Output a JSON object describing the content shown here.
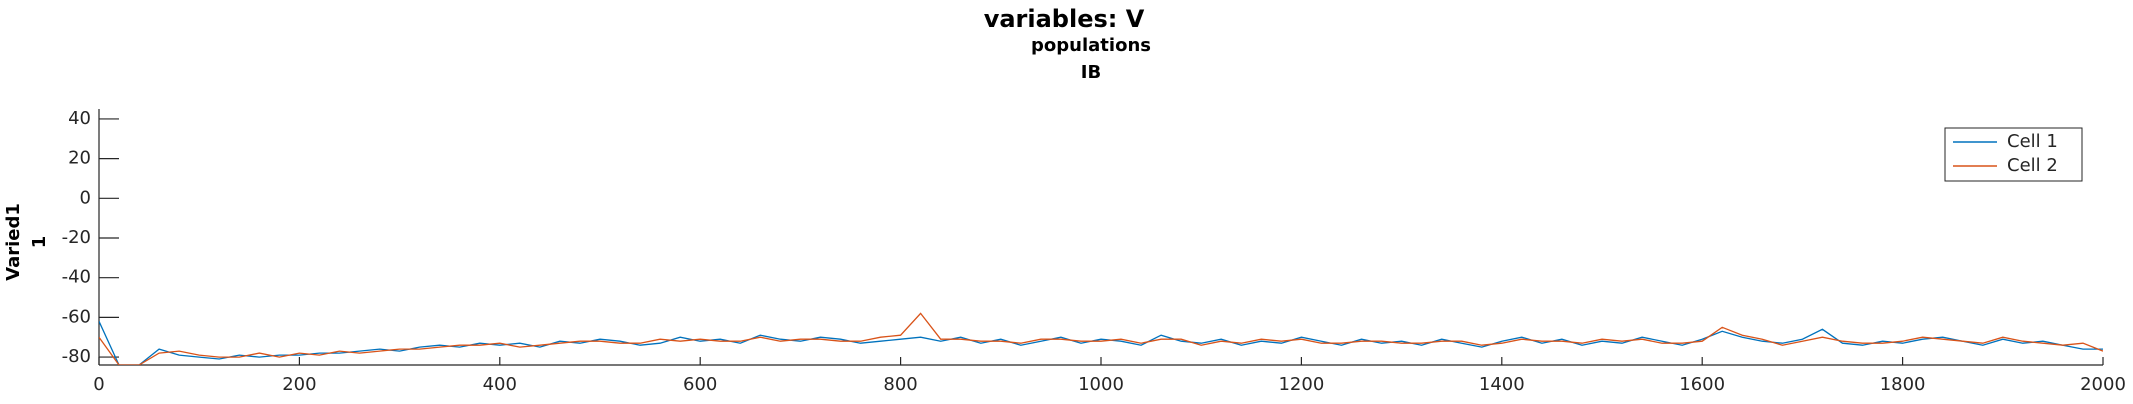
{
  "chart_data": {
    "type": "line",
    "title": "variables: V",
    "subtitles": [
      "populations",
      "IB"
    ],
    "ylabel": [
      "Varied1",
      "1"
    ],
    "x": [
      0,
      20,
      40,
      60,
      80,
      100,
      120,
      140,
      160,
      180,
      200,
      220,
      240,
      260,
      280,
      300,
      320,
      340,
      360,
      380,
      400,
      420,
      440,
      460,
      480,
      500,
      520,
      540,
      560,
      580,
      600,
      620,
      640,
      660,
      680,
      700,
      720,
      740,
      760,
      780,
      800,
      820,
      840,
      860,
      880,
      900,
      920,
      940,
      960,
      980,
      1000,
      1020,
      1040,
      1060,
      1080,
      1100,
      1120,
      1140,
      1160,
      1180,
      1200,
      1220,
      1240,
      1260,
      1280,
      1300,
      1320,
      1340,
      1360,
      1380,
      1400,
      1420,
      1440,
      1460,
      1480,
      1500,
      1520,
      1540,
      1560,
      1580,
      1600,
      1620,
      1640,
      1660,
      1680,
      1700,
      1720,
      1740,
      1760,
      1780,
      1800,
      1820,
      1840,
      1860,
      1880,
      1900,
      1920,
      1940,
      1960,
      1980,
      2000
    ],
    "series": [
      {
        "name": "Cell 1",
        "color": "#0072bd",
        "values": [
          -62,
          -84,
          -84,
          -76,
          -79,
          -80,
          -81,
          -79,
          -80,
          -79,
          -79,
          -78,
          -78,
          -77,
          -76,
          -77,
          -75,
          -74,
          -75,
          -73,
          -74,
          -73,
          -75,
          -72,
          -73,
          -71,
          -72,
          -74,
          -73,
          -70,
          -72,
          -71,
          -73,
          -69,
          -71,
          -72,
          -70,
          -71,
          -73,
          -72,
          -71,
          -70,
          -72,
          -70,
          -73,
          -71,
          -74,
          -72,
          -70,
          -73,
          -71,
          -72,
          -74,
          -69,
          -72,
          -73,
          -71,
          -74,
          -72,
          -73,
          -70,
          -72,
          -74,
          -71,
          -73,
          -72,
          -74,
          -71,
          -73,
          -75,
          -72,
          -70,
          -73,
          -71,
          -74,
          -72,
          -73,
          -70,
          -72,
          -74,
          -71,
          -67,
          -70,
          -72,
          -73,
          -71,
          -66,
          -73,
          -74,
          -72,
          -73,
          -71,
          -70,
          -72,
          -74,
          -71,
          -73,
          -72,
          -74,
          -76,
          -76
        ]
      },
      {
        "name": "Cell 2",
        "color": "#d95319",
        "values": [
          -70,
          -84,
          -84,
          -78,
          -77,
          -79,
          -80,
          -80,
          -78,
          -80,
          -78,
          -79,
          -77,
          -78,
          -77,
          -76,
          -76,
          -75,
          -74,
          -74,
          -73,
          -75,
          -74,
          -73,
          -72,
          -72,
          -73,
          -73,
          -71,
          -72,
          -71,
          -72,
          -72,
          -70,
          -72,
          -71,
          -71,
          -72,
          -72,
          -70,
          -69,
          -58,
          -71,
          -71,
          -72,
          -72,
          -73,
          -71,
          -71,
          -72,
          -72,
          -71,
          -73,
          -71,
          -71,
          -74,
          -72,
          -73,
          -71,
          -72,
          -71,
          -73,
          -73,
          -72,
          -72,
          -73,
          -73,
          -72,
          -72,
          -74,
          -73,
          -71,
          -72,
          -72,
          -73,
          -71,
          -72,
          -71,
          -73,
          -73,
          -72,
          -65,
          -69,
          -71,
          -74,
          -72,
          -70,
          -72,
          -73,
          -73,
          -72,
          -70,
          -71,
          -72,
          -73,
          -70,
          -72,
          -73,
          -74,
          -73,
          -77
        ]
      }
    ],
    "xlim": [
      0,
      2000
    ],
    "xticks": [
      0,
      200,
      400,
      600,
      800,
      1000,
      1200,
      1400,
      1600,
      1800,
      2000
    ],
    "ylim": [
      -84,
      45
    ],
    "yticks": [
      -80,
      -60,
      -40,
      -20,
      0,
      20,
      40
    ],
    "legend": "upper right"
  }
}
